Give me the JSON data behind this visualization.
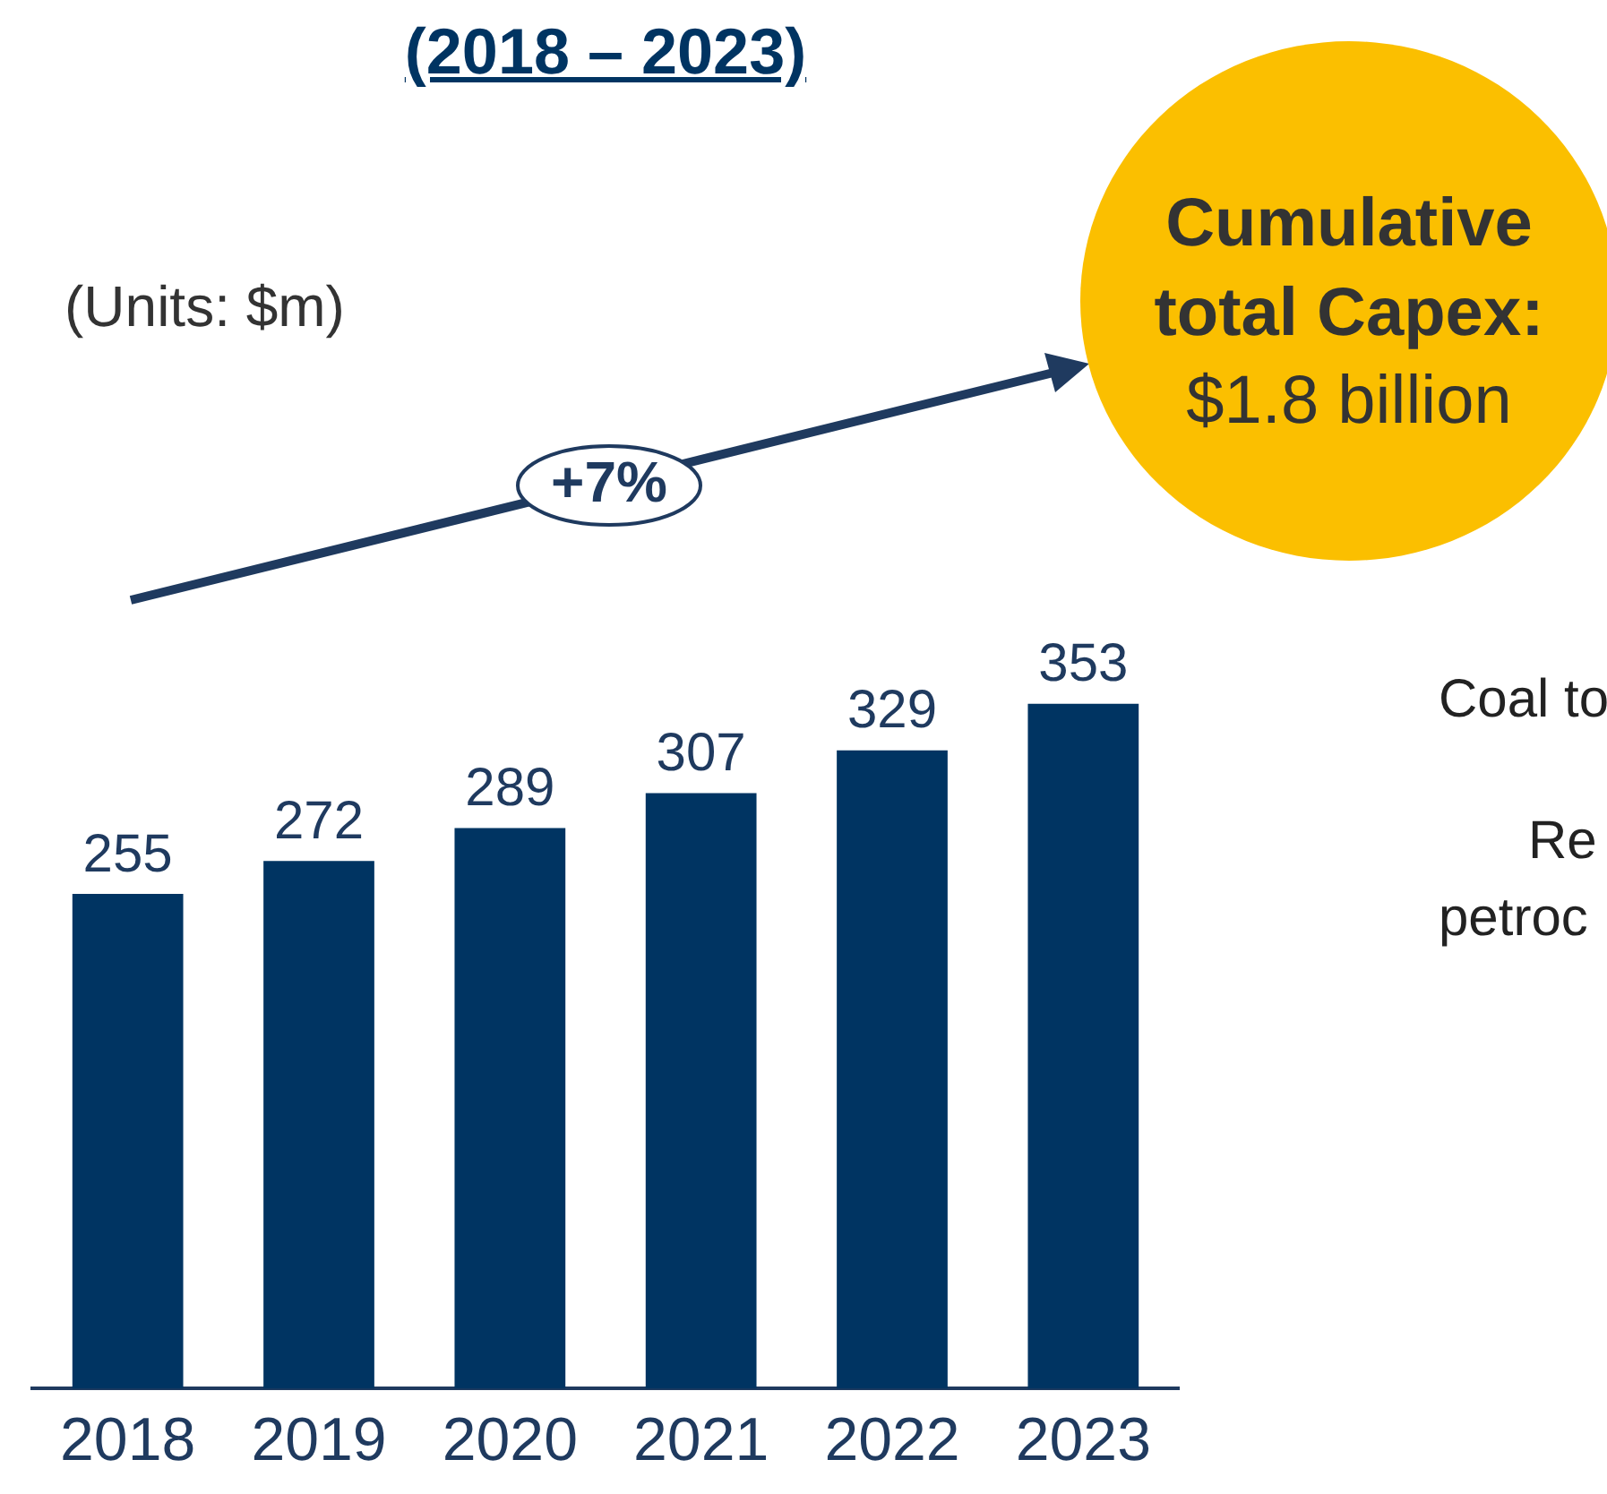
{
  "chart_data": {
    "type": "bar",
    "title": "(2018 – 2023)",
    "categories": [
      "2018",
      "2019",
      "2020",
      "2021",
      "2022",
      "2023"
    ],
    "values": [
      255,
      272,
      289,
      307,
      329,
      353
    ],
    "color": "#003462",
    "data_labels": true,
    "grid": false,
    "legend": false,
    "tick_labels": "x",
    "annotations": [
      "(Units: $m)",
      "+7%",
      "Cumulative total Capex:",
      "$1.8 billion",
      "Coal to",
      "Re",
      "petroc"
    ]
  }
}
